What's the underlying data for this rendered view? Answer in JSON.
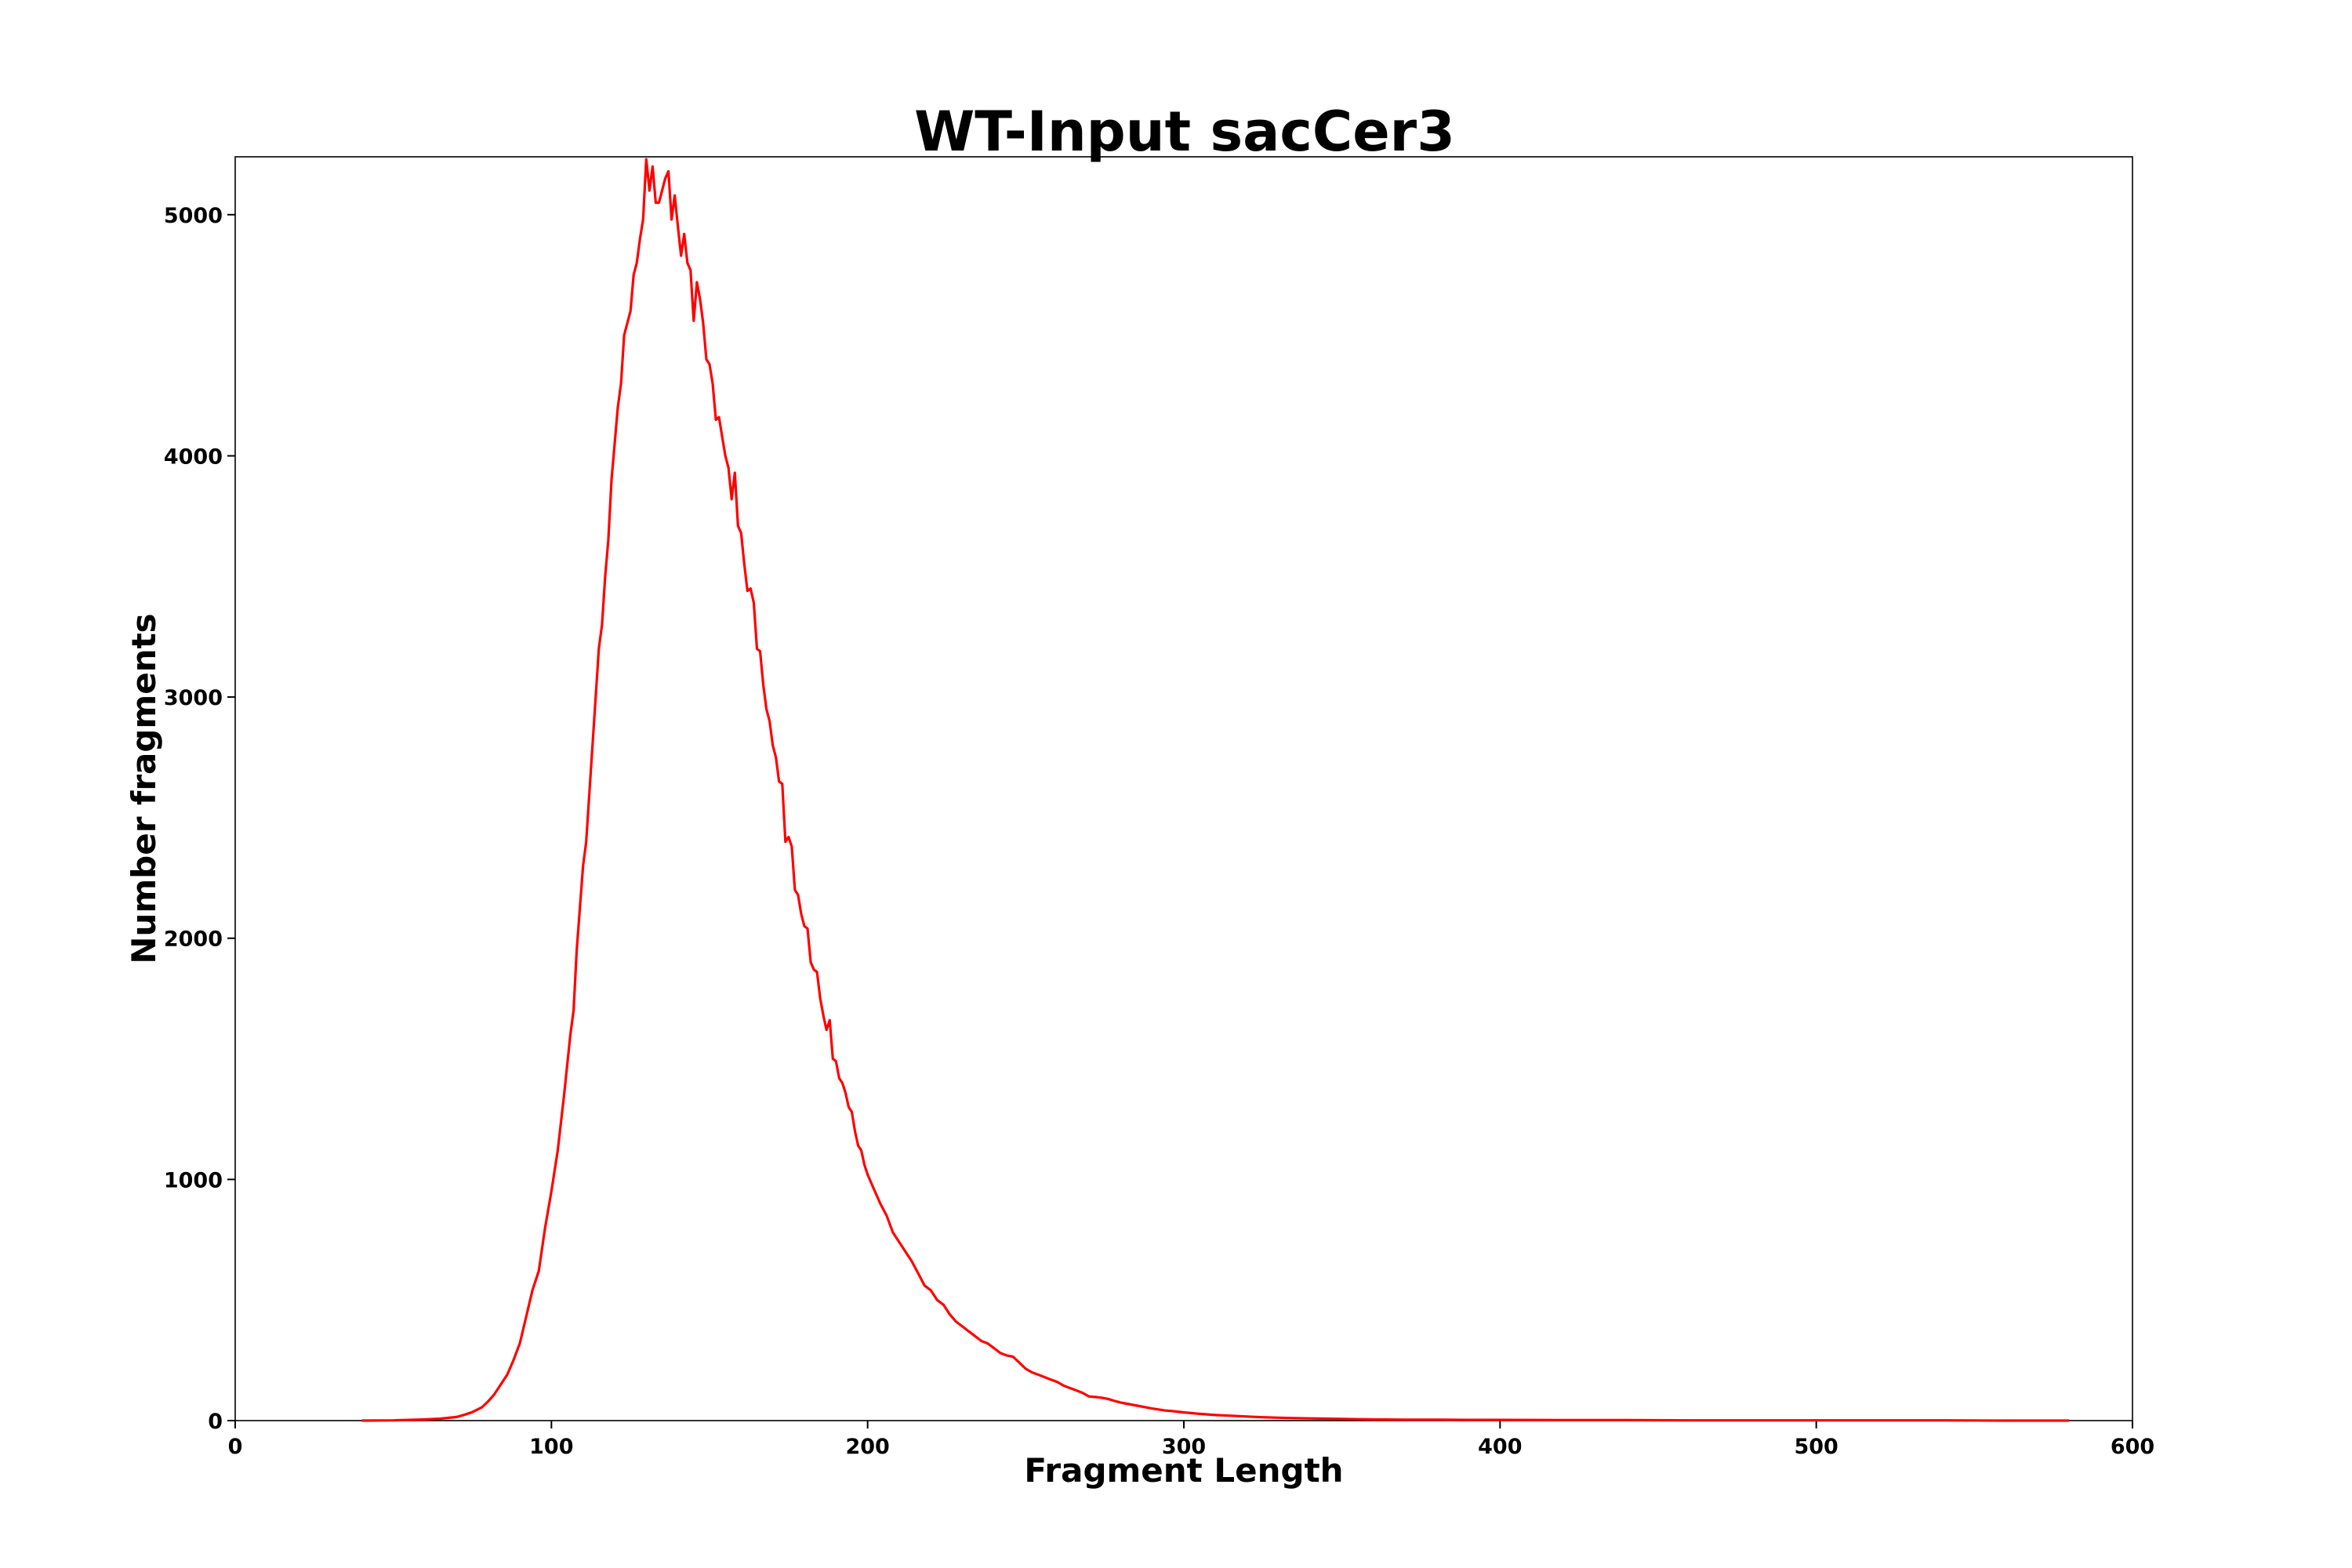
{
  "chart_data": {
    "type": "line",
    "title": "WT-Input sacCer3",
    "xlabel": "Fragment Length",
    "ylabel": "Number fragments",
    "xlim": [
      0,
      600
    ],
    "ylim": [
      0,
      5240
    ],
    "x_ticks": [
      0,
      100,
      200,
      300,
      400,
      500,
      600
    ],
    "x_tick_labels": [
      "0",
      "100",
      "200",
      "300",
      "400",
      "500",
      "600"
    ],
    "y_ticks": [
      0,
      1000,
      2000,
      3000,
      4000,
      5000
    ],
    "y_tick_labels": [
      "0",
      "1000",
      "2000",
      "3000",
      "4000",
      "5000"
    ],
    "grid": false,
    "legend": "none",
    "series": [
      {
        "color": "#ff0000",
        "points": [
          [
            40,
            0
          ],
          [
            50,
            1
          ],
          [
            55,
            3
          ],
          [
            60,
            5
          ],
          [
            65,
            8
          ],
          [
            70,
            15
          ],
          [
            72,
            22
          ],
          [
            75,
            35
          ],
          [
            78,
            55
          ],
          [
            80,
            80
          ],
          [
            82,
            110
          ],
          [
            84,
            150
          ],
          [
            86,
            190
          ],
          [
            88,
            250
          ],
          [
            90,
            320
          ],
          [
            92,
            430
          ],
          [
            94,
            540
          ],
          [
            96,
            620
          ],
          [
            98,
            800
          ],
          [
            100,
            950
          ],
          [
            102,
            1120
          ],
          [
            104,
            1350
          ],
          [
            106,
            1600
          ],
          [
            107,
            1700
          ],
          [
            108,
            1950
          ],
          [
            110,
            2300
          ],
          [
            111,
            2400
          ],
          [
            112,
            2600
          ],
          [
            114,
            3000
          ],
          [
            115,
            3200
          ],
          [
            116,
            3300
          ],
          [
            117,
            3500
          ],
          [
            118,
            3650
          ],
          [
            119,
            3900
          ],
          [
            120,
            4050
          ],
          [
            121,
            4200
          ],
          [
            122,
            4300
          ],
          [
            123,
            4500
          ],
          [
            124,
            4550
          ],
          [
            125,
            4600
          ],
          [
            126,
            4750
          ],
          [
            127,
            4800
          ],
          [
            128,
            4900
          ],
          [
            129,
            4980
          ],
          [
            130,
            5230
          ],
          [
            131,
            5100
          ],
          [
            132,
            5200
          ],
          [
            133,
            5050
          ],
          [
            134,
            5050
          ],
          [
            135,
            5100
          ],
          [
            136,
            5150
          ],
          [
            137,
            5180
          ],
          [
            138,
            4980
          ],
          [
            139,
            5080
          ],
          [
            140,
            4950
          ],
          [
            141,
            4830
          ],
          [
            142,
            4920
          ],
          [
            143,
            4800
          ],
          [
            144,
            4770
          ],
          [
            145,
            4560
          ],
          [
            146,
            4720
          ],
          [
            147,
            4650
          ],
          [
            148,
            4550
          ],
          [
            149,
            4400
          ],
          [
            150,
            4380
          ],
          [
            151,
            4300
          ],
          [
            152,
            4150
          ],
          [
            153,
            4160
          ],
          [
            154,
            4080
          ],
          [
            155,
            4000
          ],
          [
            156,
            3950
          ],
          [
            157,
            3820
          ],
          [
            158,
            3930
          ],
          [
            159,
            3710
          ],
          [
            160,
            3680
          ],
          [
            161,
            3550
          ],
          [
            162,
            3440
          ],
          [
            163,
            3450
          ],
          [
            164,
            3390
          ],
          [
            165,
            3200
          ],
          [
            166,
            3190
          ],
          [
            167,
            3050
          ],
          [
            168,
            2950
          ],
          [
            169,
            2900
          ],
          [
            170,
            2800
          ],
          [
            171,
            2750
          ],
          [
            172,
            2650
          ],
          [
            173,
            2640
          ],
          [
            174,
            2400
          ],
          [
            175,
            2420
          ],
          [
            176,
            2380
          ],
          [
            177,
            2200
          ],
          [
            178,
            2180
          ],
          [
            179,
            2100
          ],
          [
            180,
            2050
          ],
          [
            181,
            2040
          ],
          [
            182,
            1900
          ],
          [
            183,
            1870
          ],
          [
            184,
            1860
          ],
          [
            185,
            1750
          ],
          [
            186,
            1680
          ],
          [
            187,
            1620
          ],
          [
            188,
            1660
          ],
          [
            189,
            1500
          ],
          [
            190,
            1490
          ],
          [
            191,
            1420
          ],
          [
            192,
            1400
          ],
          [
            193,
            1360
          ],
          [
            194,
            1300
          ],
          [
            195,
            1280
          ],
          [
            196,
            1200
          ],
          [
            197,
            1140
          ],
          [
            198,
            1120
          ],
          [
            199,
            1060
          ],
          [
            200,
            1020
          ],
          [
            202,
            960
          ],
          [
            204,
            900
          ],
          [
            206,
            850
          ],
          [
            208,
            780
          ],
          [
            210,
            740
          ],
          [
            212,
            700
          ],
          [
            214,
            660
          ],
          [
            216,
            610
          ],
          [
            218,
            560
          ],
          [
            220,
            540
          ],
          [
            222,
            500
          ],
          [
            224,
            480
          ],
          [
            226,
            440
          ],
          [
            228,
            410
          ],
          [
            230,
            390
          ],
          [
            232,
            370
          ],
          [
            234,
            350
          ],
          [
            236,
            330
          ],
          [
            238,
            320
          ],
          [
            240,
            300
          ],
          [
            242,
            280
          ],
          [
            244,
            270
          ],
          [
            246,
            265
          ],
          [
            248,
            240
          ],
          [
            250,
            215
          ],
          [
            252,
            200
          ],
          [
            254,
            190
          ],
          [
            256,
            180
          ],
          [
            258,
            170
          ],
          [
            260,
            160
          ],
          [
            262,
            145
          ],
          [
            264,
            135
          ],
          [
            266,
            125
          ],
          [
            268,
            115
          ],
          [
            270,
            100
          ],
          [
            272,
            98
          ],
          [
            274,
            95
          ],
          [
            276,
            90
          ],
          [
            278,
            82
          ],
          [
            280,
            75
          ],
          [
            282,
            70
          ],
          [
            284,
            65
          ],
          [
            286,
            60
          ],
          [
            288,
            55
          ],
          [
            290,
            50
          ],
          [
            292,
            46
          ],
          [
            294,
            42
          ],
          [
            296,
            40
          ],
          [
            298,
            37
          ],
          [
            300,
            34
          ],
          [
            305,
            28
          ],
          [
            310,
            23
          ],
          [
            315,
            20
          ],
          [
            320,
            17
          ],
          [
            325,
            14
          ],
          [
            330,
            12
          ],
          [
            335,
            10
          ],
          [
            340,
            9
          ],
          [
            345,
            8
          ],
          [
            350,
            7
          ],
          [
            355,
            6
          ],
          [
            360,
            5
          ],
          [
            370,
            4
          ],
          [
            380,
            4
          ],
          [
            390,
            3
          ],
          [
            400,
            3
          ],
          [
            420,
            2
          ],
          [
            440,
            2
          ],
          [
            460,
            1
          ],
          [
            480,
            1
          ],
          [
            500,
            1
          ],
          [
            520,
            1
          ],
          [
            540,
            1
          ],
          [
            560,
            0
          ],
          [
            580,
            0
          ]
        ]
      }
    ]
  }
}
